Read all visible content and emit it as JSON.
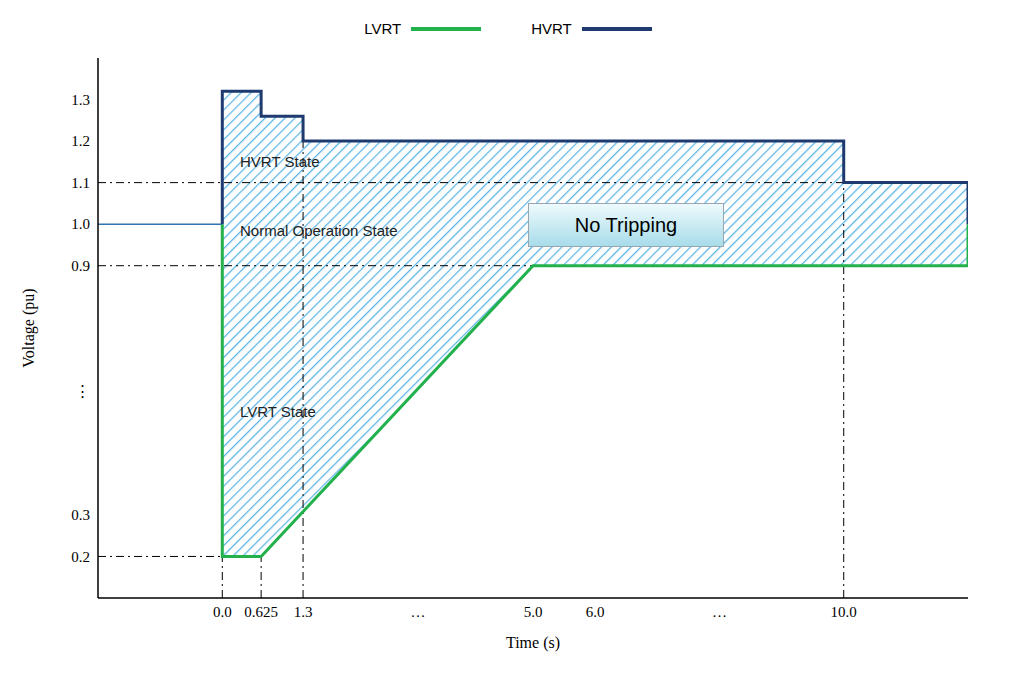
{
  "chart_data": {
    "type": "line",
    "x_label": "Time (s)",
    "y_label": "Voltage (pu)",
    "xlim": [
      -2,
      12
    ],
    "ylim": [
      0.1,
      1.4
    ],
    "xticks": [
      {
        "value": 0,
        "label": "0.0"
      },
      0.625,
      1.3,
      {
        "value": 3.15,
        "label": "…"
      },
      {
        "value": 5,
        "label": "5.0"
      },
      {
        "value": 6,
        "label": "6.0"
      },
      {
        "value": 8,
        "label": "…"
      },
      {
        "value": 10,
        "label": "10.0"
      }
    ],
    "yticks": [
      0.2,
      0.3,
      {
        "value": 0.6,
        "label": "⋮"
      },
      0.9,
      {
        "value": 1,
        "label": "1.0"
      },
      1.1,
      1.2,
      1.3
    ],
    "grid": false,
    "legend": "top",
    "series": [
      {
        "name": "LVRT",
        "color": "#22b14c",
        "x": [
          0,
          0,
          0.625,
          5,
          12,
          12
        ],
        "values": [
          1,
          0.2,
          0.2,
          0.9,
          0.9,
          1
        ]
      },
      {
        "name": "HVRT",
        "color": "#1f3a6e",
        "x": [
          0,
          0,
          0.625,
          0.625,
          1.3,
          1.3,
          10,
          10,
          12,
          12
        ],
        "values": [
          1,
          1.32,
          1.32,
          1.26,
          1.26,
          1.2,
          1.2,
          1.1,
          1.1,
          1
        ]
      }
    ],
    "pre_fault": {
      "color": "#2e75b6",
      "x": [
        -2,
        0
      ],
      "values": [
        1,
        1
      ]
    },
    "annotations": [
      "HVRT State",
      "Normal Operation State",
      "LVRT State",
      "No Tripping"
    ]
  }
}
